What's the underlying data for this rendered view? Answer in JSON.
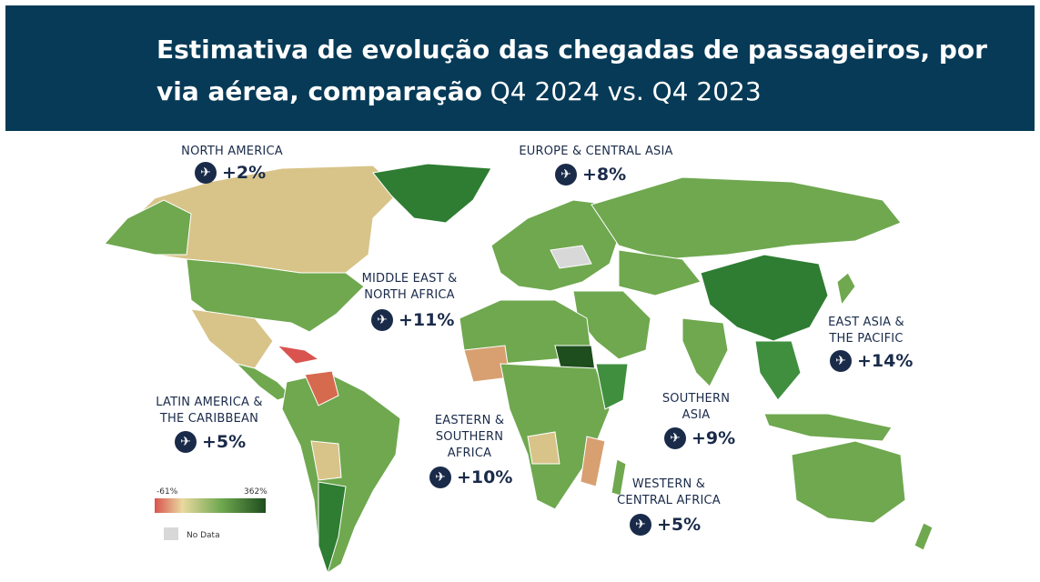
{
  "header": {
    "title_bold": "Estimativa de evolução das chegadas de passageiros, por via aérea, comparação",
    "title_normal": "Q4 2024 vs. Q4 2023"
  },
  "regions": [
    {
      "key": "north_america",
      "label": "NORTH AMERICA",
      "value": "+2%"
    },
    {
      "key": "europe_central_asia",
      "label": "EUROPE & CENTRAL ASIA",
      "value": "+8%"
    },
    {
      "key": "middle_east_north_africa",
      "label": "MIDDLE EAST & NORTH AFRICA",
      "value": "+11%"
    },
    {
      "key": "east_asia_pacific",
      "label": "EAST ASIA & THE PACIFIC",
      "value": "+14%"
    },
    {
      "key": "latin_america_caribbean",
      "label": "LATIN AMERICA & THE CARIBBEAN",
      "value": "+5%"
    },
    {
      "key": "eastern_southern_africa",
      "label": "EASTERN & SOUTHERN AFRICA",
      "value": "+10%"
    },
    {
      "key": "southern_asia",
      "label": "SOUTHERN ASIA",
      "value": "+9%"
    },
    {
      "key": "western_central_africa",
      "label": "WESTERN & CENTRAL AFRICA",
      "value": "+5%"
    }
  ],
  "legend": {
    "min_label": "-61%",
    "max_label": "362%",
    "no_data_label": "No Data",
    "colors": {
      "low": "#d9534f",
      "mid": "#e9d9a0",
      "high": "#1e5a1e",
      "no_data": "#d8d8d8"
    }
  },
  "icons": {
    "plane": "airplane-icon"
  }
}
